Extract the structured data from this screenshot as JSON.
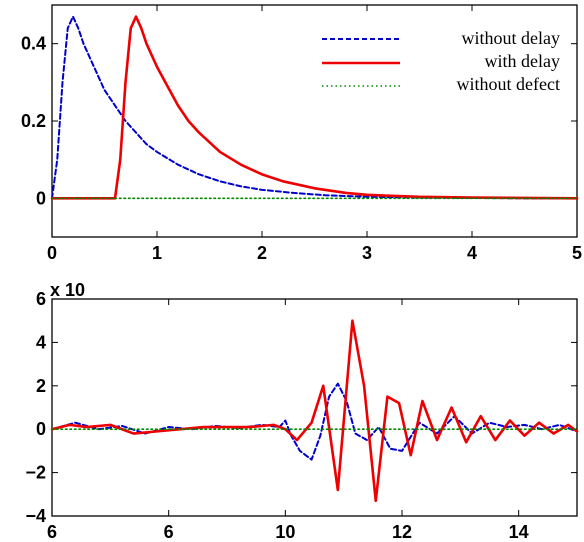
{
  "chart_data": [
    {
      "type": "line",
      "title": "",
      "xlabel": "",
      "ylabel": "",
      "xlim": [
        0,
        5
      ],
      "ylim": [
        -0.1,
        0.5
      ],
      "x_ticks": [
        "0",
        "1",
        "2",
        "3",
        "4",
        "5"
      ],
      "y_ticks": [
        "0",
        "0.2",
        "0.4"
      ],
      "grid": false,
      "legend_position": "top-right",
      "series": [
        {
          "name": "without delay",
          "color": "#0000cc",
          "style": "dashed",
          "x": [
            0,
            0.05,
            0.1,
            0.15,
            0.2,
            0.25,
            0.3,
            0.4,
            0.5,
            0.6,
            0.7,
            0.8,
            0.9,
            1.0,
            1.2,
            1.4,
            1.6,
            1.8,
            2.0,
            2.3,
            2.6,
            3.0,
            3.5,
            4.0,
            4.5,
            5.0
          ],
          "values": [
            0.0,
            0.1,
            0.3,
            0.44,
            0.47,
            0.44,
            0.4,
            0.34,
            0.28,
            0.24,
            0.2,
            0.17,
            0.14,
            0.12,
            0.087,
            0.062,
            0.044,
            0.031,
            0.022,
            0.014,
            0.008,
            0.004,
            0.002,
            0.001,
            0.0,
            0.0
          ]
        },
        {
          "name": "with delay",
          "color": "#ee0000",
          "style": "solid",
          "x": [
            0,
            0.5,
            0.6,
            0.65,
            0.7,
            0.75,
            0.8,
            0.85,
            0.9,
            1.0,
            1.1,
            1.2,
            1.3,
            1.4,
            1.6,
            1.8,
            2.0,
            2.2,
            2.5,
            2.8,
            3.0,
            3.5,
            4.0,
            4.5,
            5.0
          ],
          "values": [
            0.0,
            0.0,
            0.0,
            0.1,
            0.3,
            0.44,
            0.47,
            0.44,
            0.4,
            0.34,
            0.29,
            0.24,
            0.2,
            0.17,
            0.12,
            0.087,
            0.062,
            0.044,
            0.026,
            0.014,
            0.009,
            0.004,
            0.002,
            0.001,
            0.0
          ]
        },
        {
          "name": "without defect",
          "color": "#008800",
          "style": "dotted",
          "x": [
            0,
            5
          ],
          "values": [
            0.0,
            0.0
          ]
        }
      ]
    },
    {
      "type": "line",
      "title": "",
      "xlabel": "",
      "ylabel": "",
      "xlim": [
        6,
        15
      ],
      "ylim": [
        -4,
        6
      ],
      "x_ticks": [
        "6",
        "6",
        "10",
        "12",
        "14"
      ],
      "y_ticks": [
        "−4",
        "−2",
        "0",
        "2",
        "4",
        "6"
      ],
      "y_multiplier": "x 10",
      "grid": false,
      "series": [
        {
          "name": "without delay",
          "color": "#0000cc",
          "style": "dashed",
          "x": [
            6.0,
            6.4,
            6.8,
            7.2,
            7.6,
            8.0,
            8.4,
            8.8,
            9.2,
            9.6,
            9.9,
            10.0,
            10.1,
            10.25,
            10.45,
            10.6,
            10.75,
            10.9,
            11.05,
            11.2,
            11.4,
            11.6,
            11.8,
            12.0,
            12.3,
            12.6,
            12.9,
            13.2,
            13.5,
            13.8,
            14.1,
            14.4,
            14.7,
            15.0
          ],
          "values": [
            0.0,
            0.3,
            0.0,
            0.15,
            -0.2,
            0.1,
            0.0,
            0.15,
            0.05,
            0.2,
            0.1,
            0.4,
            -0.3,
            -1.0,
            -1.4,
            -0.3,
            1.5,
            2.1,
            1.3,
            -0.2,
            -0.5,
            0.1,
            -0.9,
            -1.0,
            0.3,
            -0.2,
            0.6,
            -0.2,
            0.3,
            0.1,
            0.2,
            0.0,
            0.2,
            -0.1
          ]
        },
        {
          "name": "with delay",
          "color": "#ee0000",
          "style": "solid",
          "x": [
            6.0,
            6.3,
            6.6,
            7.0,
            7.4,
            7.8,
            8.2,
            8.6,
            9.0,
            9.4,
            9.8,
            10.0,
            10.2,
            10.45,
            10.65,
            10.9,
            11.15,
            11.35,
            11.55,
            11.75,
            11.95,
            12.15,
            12.35,
            12.6,
            12.85,
            13.1,
            13.35,
            13.6,
            13.85,
            14.1,
            14.35,
            14.6,
            14.85,
            15.0
          ],
          "values": [
            0.0,
            0.2,
            0.1,
            0.2,
            -0.2,
            -0.1,
            0.0,
            0.1,
            0.1,
            0.1,
            0.2,
            0.0,
            -0.5,
            0.3,
            2.0,
            -2.8,
            5.0,
            2.0,
            -3.3,
            1.5,
            1.2,
            -1.2,
            1.3,
            -0.5,
            1.0,
            -0.6,
            0.6,
            -0.5,
            0.4,
            -0.3,
            0.3,
            -0.2,
            0.2,
            -0.1
          ]
        },
        {
          "name": "without defect",
          "color": "#008800",
          "style": "dotted",
          "x": [
            6,
            15
          ],
          "values": [
            0.0,
            0.0
          ]
        }
      ]
    }
  ]
}
